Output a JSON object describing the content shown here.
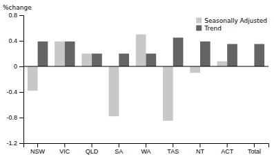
{
  "chart_data": {
    "type": "bar",
    "ylabel": "%change",
    "categories": [
      "NSW",
      "VIC",
      "QLD",
      "SA",
      "WA",
      "TAS",
      "NT",
      "ACT",
      "Total"
    ],
    "series": [
      {
        "name": "Seasonally Adjusted",
        "color": "#c8c8c8",
        "values": [
          -0.38,
          0.39,
          0.2,
          -0.78,
          0.5,
          -0.85,
          -0.1,
          0.08,
          0.0
        ]
      },
      {
        "name": "Trend",
        "color": "#646464",
        "values": [
          0.39,
          0.39,
          0.2,
          0.2,
          0.2,
          0.45,
          0.39,
          0.35,
          0.35
        ]
      }
    ],
    "ylim": [
      -1.2,
      0.8
    ],
    "yticks": [
      -1.2,
      -0.8,
      -0.4,
      0,
      0.4,
      0.8
    ],
    "grid": false,
    "legend": "upper right"
  }
}
